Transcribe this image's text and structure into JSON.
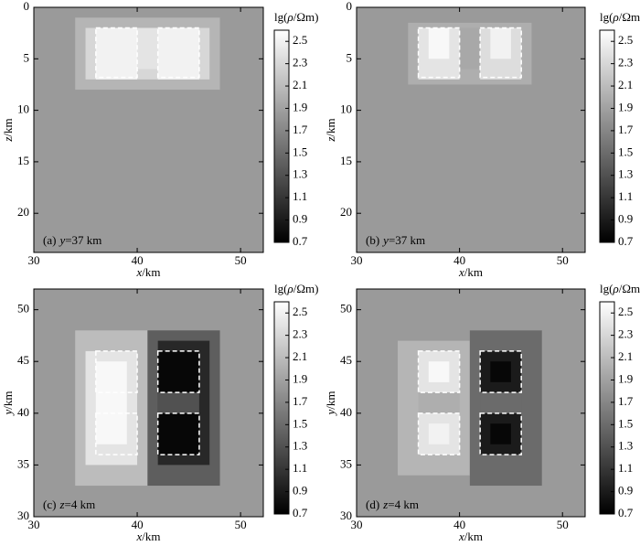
{
  "chart_data": [
    {
      "type": "heatmap",
      "caption": {
        "prefix": "(a)",
        "var": "y",
        "rest": "=37 km"
      },
      "xlabel": {
        "var": "x",
        "unit": "/km"
      },
      "ylabel": {
        "var": "z",
        "unit": "/km"
      },
      "xlim": [
        30,
        52.2
      ],
      "xticks": [
        30,
        40,
        50
      ],
      "ylim": [
        23.8,
        0
      ],
      "yticks": [
        0,
        5,
        10,
        15,
        20
      ],
      "background": 1.85,
      "blocks": [
        {
          "x": [
            34,
            48
          ],
          "y": [
            1,
            8
          ],
          "value": 2.05
        },
        {
          "x": [
            35,
            47
          ],
          "y": [
            2,
            7
          ],
          "value": 2.3
        },
        {
          "x": [
            36,
            40
          ],
          "y": [
            2,
            7
          ],
          "value": 2.5
        },
        {
          "x": [
            42,
            46
          ],
          "y": [
            2,
            7
          ],
          "value": 2.5
        },
        {
          "x": [
            40,
            42
          ],
          "y": [
            2,
            6
          ],
          "value": 2.4
        }
      ],
      "boxes": [
        {
          "x": [
            36,
            40
          ],
          "y": [
            2,
            6.8
          ]
        },
        {
          "x": [
            42,
            46
          ],
          "y": [
            2,
            6.8
          ]
        }
      ],
      "colorbar": {
        "label_pre": "lg(",
        "label_var": "ρ",
        "label_post": "/Ωm)",
        "lim": [
          0.7,
          2.6
        ],
        "ticks": [
          0.7,
          0.9,
          1.1,
          1.3,
          1.5,
          1.7,
          1.9,
          2.1,
          2.3,
          2.5
        ]
      }
    },
    {
      "type": "heatmap",
      "caption": {
        "prefix": "(b)",
        "var": "y",
        "rest": "=37 km"
      },
      "xlabel": {
        "var": "x",
        "unit": "/km"
      },
      "ylabel": {
        "var": "z",
        "unit": "/km"
      },
      "xlim": [
        30,
        52.2
      ],
      "xticks": [
        30,
        40,
        50
      ],
      "ylim": [
        23.8,
        0
      ],
      "yticks": [
        0,
        5,
        10,
        15,
        20
      ],
      "background": 1.85,
      "blocks": [
        {
          "x": [
            35,
            47
          ],
          "y": [
            1.5,
            7.5
          ],
          "value": 2.0
        },
        {
          "x": [
            36,
            40
          ],
          "y": [
            2,
            7
          ],
          "value": 2.4
        },
        {
          "x": [
            37,
            39
          ],
          "y": [
            2,
            5
          ],
          "value": 2.55
        },
        {
          "x": [
            42,
            46
          ],
          "y": [
            2,
            7
          ],
          "value": 2.35
        },
        {
          "x": [
            43,
            45
          ],
          "y": [
            2,
            5
          ],
          "value": 2.5
        },
        {
          "x": [
            40,
            42
          ],
          "y": [
            2,
            6
          ],
          "value": 1.95
        }
      ],
      "boxes": [
        {
          "x": [
            36,
            40
          ],
          "y": [
            2,
            6.8
          ]
        },
        {
          "x": [
            42,
            46
          ],
          "y": [
            2,
            6.8
          ]
        }
      ],
      "colorbar": {
        "label_pre": "lg(",
        "label_var": "ρ",
        "label_post": "/Ωm)",
        "lim": [
          0.7,
          2.6
        ],
        "ticks": [
          0.7,
          0.9,
          1.1,
          1.3,
          1.5,
          1.7,
          1.9,
          2.1,
          2.3,
          2.5
        ]
      }
    },
    {
      "type": "heatmap",
      "caption": {
        "prefix": "(c)",
        "var": "z",
        "rest": "=4 km"
      },
      "xlabel": {
        "var": "x",
        "unit": "/km"
      },
      "ylabel": {
        "var": "y",
        "unit": "/km"
      },
      "xlim": [
        30,
        52.2
      ],
      "xticks": [
        30,
        40,
        50
      ],
      "ylim": [
        30,
        52
      ],
      "yticks": [
        30,
        35,
        40,
        45,
        50
      ],
      "background": 1.85,
      "blocks": [
        {
          "x": [
            34,
            41
          ],
          "y": [
            33,
            48
          ],
          "value": 2.1
        },
        {
          "x": [
            35,
            40
          ],
          "y": [
            35,
            46
          ],
          "value": 2.4
        },
        {
          "x": [
            36,
            39
          ],
          "y": [
            37,
            45
          ],
          "value": 2.55
        },
        {
          "x": [
            41,
            48
          ],
          "y": [
            33,
            48
          ],
          "value": 1.4
        },
        {
          "x": [
            42,
            47
          ],
          "y": [
            35,
            47
          ],
          "value": 1.0
        },
        {
          "x": [
            42,
            46
          ],
          "y": [
            42,
            46
          ],
          "value": 0.75
        },
        {
          "x": [
            42,
            46
          ],
          "y": [
            36,
            40
          ],
          "value": 0.75
        },
        {
          "x": [
            42,
            46
          ],
          "y": [
            40,
            42
          ],
          "value": 1.3
        }
      ],
      "boxes": [
        {
          "x": [
            36,
            40
          ],
          "y": [
            42,
            46
          ]
        },
        {
          "x": [
            36,
            40
          ],
          "y": [
            36,
            40
          ]
        },
        {
          "x": [
            42,
            46
          ],
          "y": [
            42,
            46
          ]
        },
        {
          "x": [
            42,
            46
          ],
          "y": [
            36,
            40
          ]
        }
      ],
      "colorbar": {
        "label_pre": "lg(",
        "label_var": "ρ",
        "label_post": "/Ωm)",
        "lim": [
          0.7,
          2.6
        ],
        "ticks": [
          0.7,
          0.9,
          1.1,
          1.3,
          1.5,
          1.7,
          1.9,
          2.1,
          2.3,
          2.5
        ]
      }
    },
    {
      "type": "heatmap",
      "caption": {
        "prefix": "(d)",
        "var": "z",
        "rest": "=4 km"
      },
      "xlabel": {
        "var": "x",
        "unit": "/km"
      },
      "ylabel": {
        "var": "y",
        "unit": "/km"
      },
      "xlim": [
        30,
        52.2
      ],
      "xticks": [
        30,
        40,
        50
      ],
      "ylim": [
        30,
        52
      ],
      "yticks": [
        30,
        35,
        40,
        45,
        50
      ],
      "background": 1.85,
      "blocks": [
        {
          "x": [
            34,
            41
          ],
          "y": [
            34,
            47
          ],
          "value": 2.05
        },
        {
          "x": [
            36,
            40
          ],
          "y": [
            42,
            46
          ],
          "value": 2.4
        },
        {
          "x": [
            37,
            39
          ],
          "y": [
            43,
            45
          ],
          "value": 2.55
        },
        {
          "x": [
            36,
            40
          ],
          "y": [
            36,
            40
          ],
          "value": 2.4
        },
        {
          "x": [
            37,
            39
          ],
          "y": [
            37,
            39
          ],
          "value": 2.5
        },
        {
          "x": [
            36,
            40
          ],
          "y": [
            40,
            42
          ],
          "value": 2.0
        },
        {
          "x": [
            41,
            48
          ],
          "y": [
            33,
            48
          ],
          "value": 1.5
        },
        {
          "x": [
            42,
            46
          ],
          "y": [
            42,
            46
          ],
          "value": 0.9
        },
        {
          "x": [
            43,
            45
          ],
          "y": [
            43,
            45
          ],
          "value": 0.75
        },
        {
          "x": [
            42,
            46
          ],
          "y": [
            36,
            40
          ],
          "value": 0.9
        },
        {
          "x": [
            43,
            45
          ],
          "y": [
            37,
            39
          ],
          "value": 0.75
        },
        {
          "x": [
            42,
            46
          ],
          "y": [
            40,
            42
          ],
          "value": 1.5
        }
      ],
      "boxes": [
        {
          "x": [
            36,
            40
          ],
          "y": [
            42,
            46
          ]
        },
        {
          "x": [
            36,
            40
          ],
          "y": [
            36,
            40
          ]
        },
        {
          "x": [
            42,
            46
          ],
          "y": [
            42,
            46
          ]
        },
        {
          "x": [
            42,
            46
          ],
          "y": [
            36,
            40
          ]
        }
      ],
      "colorbar": {
        "label_pre": "lg(",
        "label_var": "ρ",
        "label_post": "/Ωm)",
        "lim": [
          0.7,
          2.6
        ],
        "ticks": [
          0.7,
          0.9,
          1.1,
          1.3,
          1.5,
          1.7,
          1.9,
          2.1,
          2.3,
          2.5
        ]
      }
    }
  ]
}
